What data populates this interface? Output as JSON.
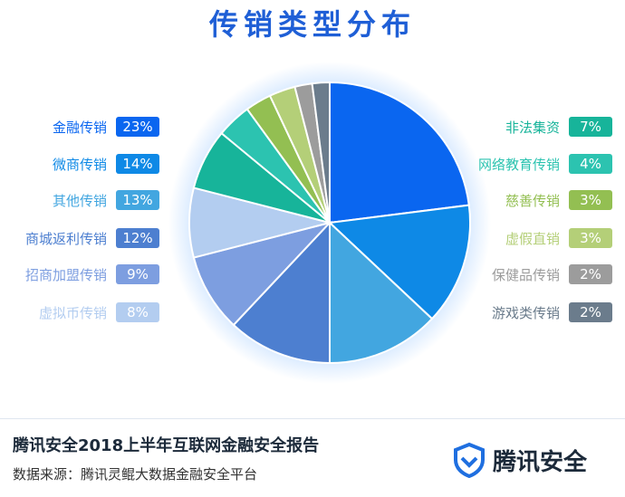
{
  "title": "传销类型分布",
  "chart_data": {
    "type": "pie",
    "title": "传销类型分布",
    "unit": "%",
    "slices": [
      {
        "name": "金融传销",
        "value": 23,
        "label": "23%",
        "color": "#0a66f0",
        "side": "left"
      },
      {
        "name": "微商传销",
        "value": 14,
        "label": "14%",
        "color": "#0e89e6",
        "side": "left"
      },
      {
        "name": "其他传销",
        "value": 13,
        "label": "13%",
        "color": "#42a6e0",
        "side": "left"
      },
      {
        "name": "商城返利传销",
        "value": 12,
        "label": "12%",
        "color": "#4d7fd0",
        "side": "left"
      },
      {
        "name": "招商加盟传销",
        "value": 9,
        "label": "9%",
        "color": "#7d9ee0",
        "side": "left"
      },
      {
        "name": "虚拟币传销",
        "value": 8,
        "label": "8%",
        "color": "#b3cdf0",
        "side": "left"
      },
      {
        "name": "非法集资",
        "value": 7,
        "label": "7%",
        "color": "#17b49a",
        "side": "right"
      },
      {
        "name": "网络教育传销",
        "value": 4,
        "label": "4%",
        "color": "#2cc3b0",
        "side": "right"
      },
      {
        "name": "慈善传销",
        "value": 3,
        "label": "3%",
        "color": "#93bf52",
        "side": "right"
      },
      {
        "name": "虚假直销",
        "value": 3,
        "label": "3%",
        "color": "#b4cf78",
        "side": "right"
      },
      {
        "name": "保健品传销",
        "value": 2,
        "label": "2%",
        "color": "#9c9c9c",
        "side": "right"
      },
      {
        "name": "游戏类传销",
        "value": 2,
        "label": "2%",
        "color": "#6b7c8c",
        "side": "right"
      }
    ]
  },
  "footer": {
    "report": "腾讯安全2018上半年互联网金融安全报告",
    "source": "数据来源：腾讯灵鲲大数据金融安全平台",
    "brand": "腾讯安全"
  }
}
